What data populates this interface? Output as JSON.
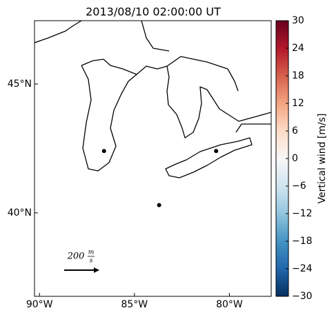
{
  "chart_data": {
    "type": "scatter",
    "title": "2013/08/10 02:00:00 UT",
    "x": [
      -86.6,
      -80.7,
      -83.7
    ],
    "y": [
      42.4,
      42.4,
      40.3
    ],
    "color": "#000000",
    "xlim": [
      -90.26,
      -77.8
    ],
    "ylim": [
      36.76,
      47.46
    ],
    "xticks": [
      {
        "value": -90,
        "label": "90°W"
      },
      {
        "value": -85,
        "label": "85°W"
      },
      {
        "value": -80,
        "label": "80°W"
      }
    ],
    "yticks": [
      {
        "value": 40,
        "label": "40°N"
      },
      {
        "value": 45,
        "label": "45°N"
      }
    ],
    "quiver_key": {
      "label": "200",
      "unit_top": "m",
      "unit_bottom": "s"
    },
    "colorbar": {
      "label": "Vertical wind [m/s]",
      "colormap": "RdBu_r",
      "lim": [
        -30,
        30
      ],
      "ticks": [
        {
          "value": -30,
          "label": "−30"
        },
        {
          "value": -24,
          "label": "−24"
        },
        {
          "value": -18,
          "label": "−18"
        },
        {
          "value": -12,
          "label": "−12"
        },
        {
          "value": -6,
          "label": "−6"
        },
        0,
        6,
        12,
        18,
        24,
        30
      ]
    }
  }
}
